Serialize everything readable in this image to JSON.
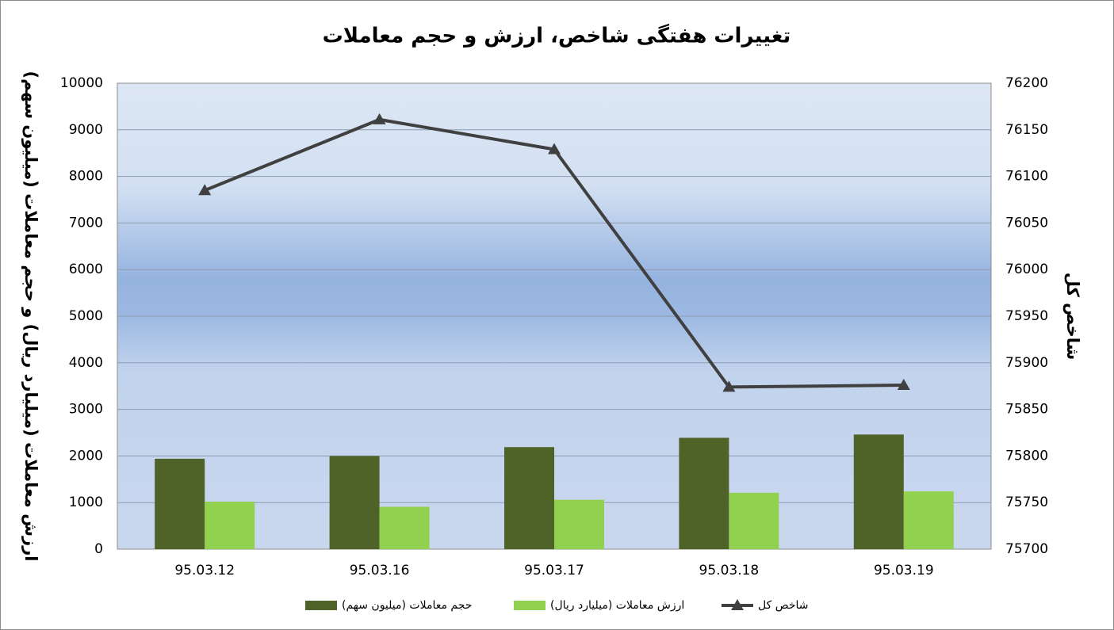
{
  "chart_data": {
    "type": "bar-line",
    "title": "تغییرات هفتگی شاخص، ارزش و حجم معاملات",
    "y_label": "ارزش معاملات (میلیارد ریال) و حجم معاملات (میلیون سهم)",
    "y2_label": "شاخص کل",
    "categories": [
      "95.03.12",
      "95.03.16",
      "95.03.17",
      "95.03.18",
      "95.03.19"
    ],
    "series": [
      {
        "name": "حجم معاملات (میلیون سهم)",
        "type": "bar",
        "color": "#4f6228",
        "values": [
          1940,
          2000,
          2190,
          2390,
          2460
        ]
      },
      {
        "name": "ارزش معاملات (میلیارد ریال)",
        "type": "bar",
        "color": "#92d050",
        "values": [
          1020,
          910,
          1060,
          1210,
          1240
        ]
      },
      {
        "name": "شاخص کل",
        "type": "line",
        "axis": "y2",
        "color": "#404040",
        "values": [
          76085,
          76161,
          76129,
          75874,
          75876
        ]
      }
    ],
    "ylim": [
      0,
      10000
    ],
    "yticks": [
      0,
      1000,
      2000,
      3000,
      4000,
      5000,
      6000,
      7000,
      8000,
      9000,
      10000
    ],
    "y2lim": [
      75700,
      76200
    ],
    "y2ticks": [
      75700,
      75750,
      75800,
      75850,
      75900,
      75950,
      76000,
      76050,
      76100,
      76150,
      76200
    ],
    "grid": true,
    "legend": "bottom"
  }
}
